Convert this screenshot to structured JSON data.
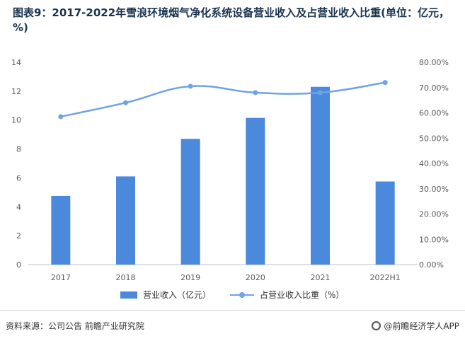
{
  "title": "图表9：2017-2022年雪浪环境烟气净化系统设备营业收入及占营业收入比重(单位：亿元，%)",
  "source": "资料来源：公司公告 前瞻产业研究院",
  "brand": "@前瞻经济学人APP",
  "colors": {
    "bar": "#4a89dc",
    "line": "#6ea3e6"
  },
  "chart_data": {
    "type": "bar",
    "categories": [
      "2017",
      "2018",
      "2019",
      "2020",
      "2021",
      "2022H1"
    ],
    "series": [
      {
        "name": "营业收入（亿元）",
        "type": "bar",
        "axis": "left",
        "values": [
          4.75,
          6.1,
          8.7,
          10.15,
          12.3,
          5.75
        ]
      },
      {
        "name": "占营业收入比重（%）",
        "type": "line",
        "axis": "right",
        "values": [
          58.5,
          64.0,
          70.5,
          68.0,
          68.0,
          72.0
        ]
      }
    ],
    "left_axis": {
      "min": 0,
      "max": 14,
      "ticks": [
        "0",
        "2",
        "4",
        "6",
        "8",
        "10",
        "12",
        "14"
      ]
    },
    "right_axis": {
      "min": 0,
      "max": 80,
      "ticks": [
        "0.00%",
        "10.00%",
        "20.00%",
        "30.00%",
        "40.00%",
        "50.00%",
        "60.00%",
        "70.00%",
        "80.00%"
      ]
    },
    "grid": false,
    "legend_position": "bottom"
  }
}
